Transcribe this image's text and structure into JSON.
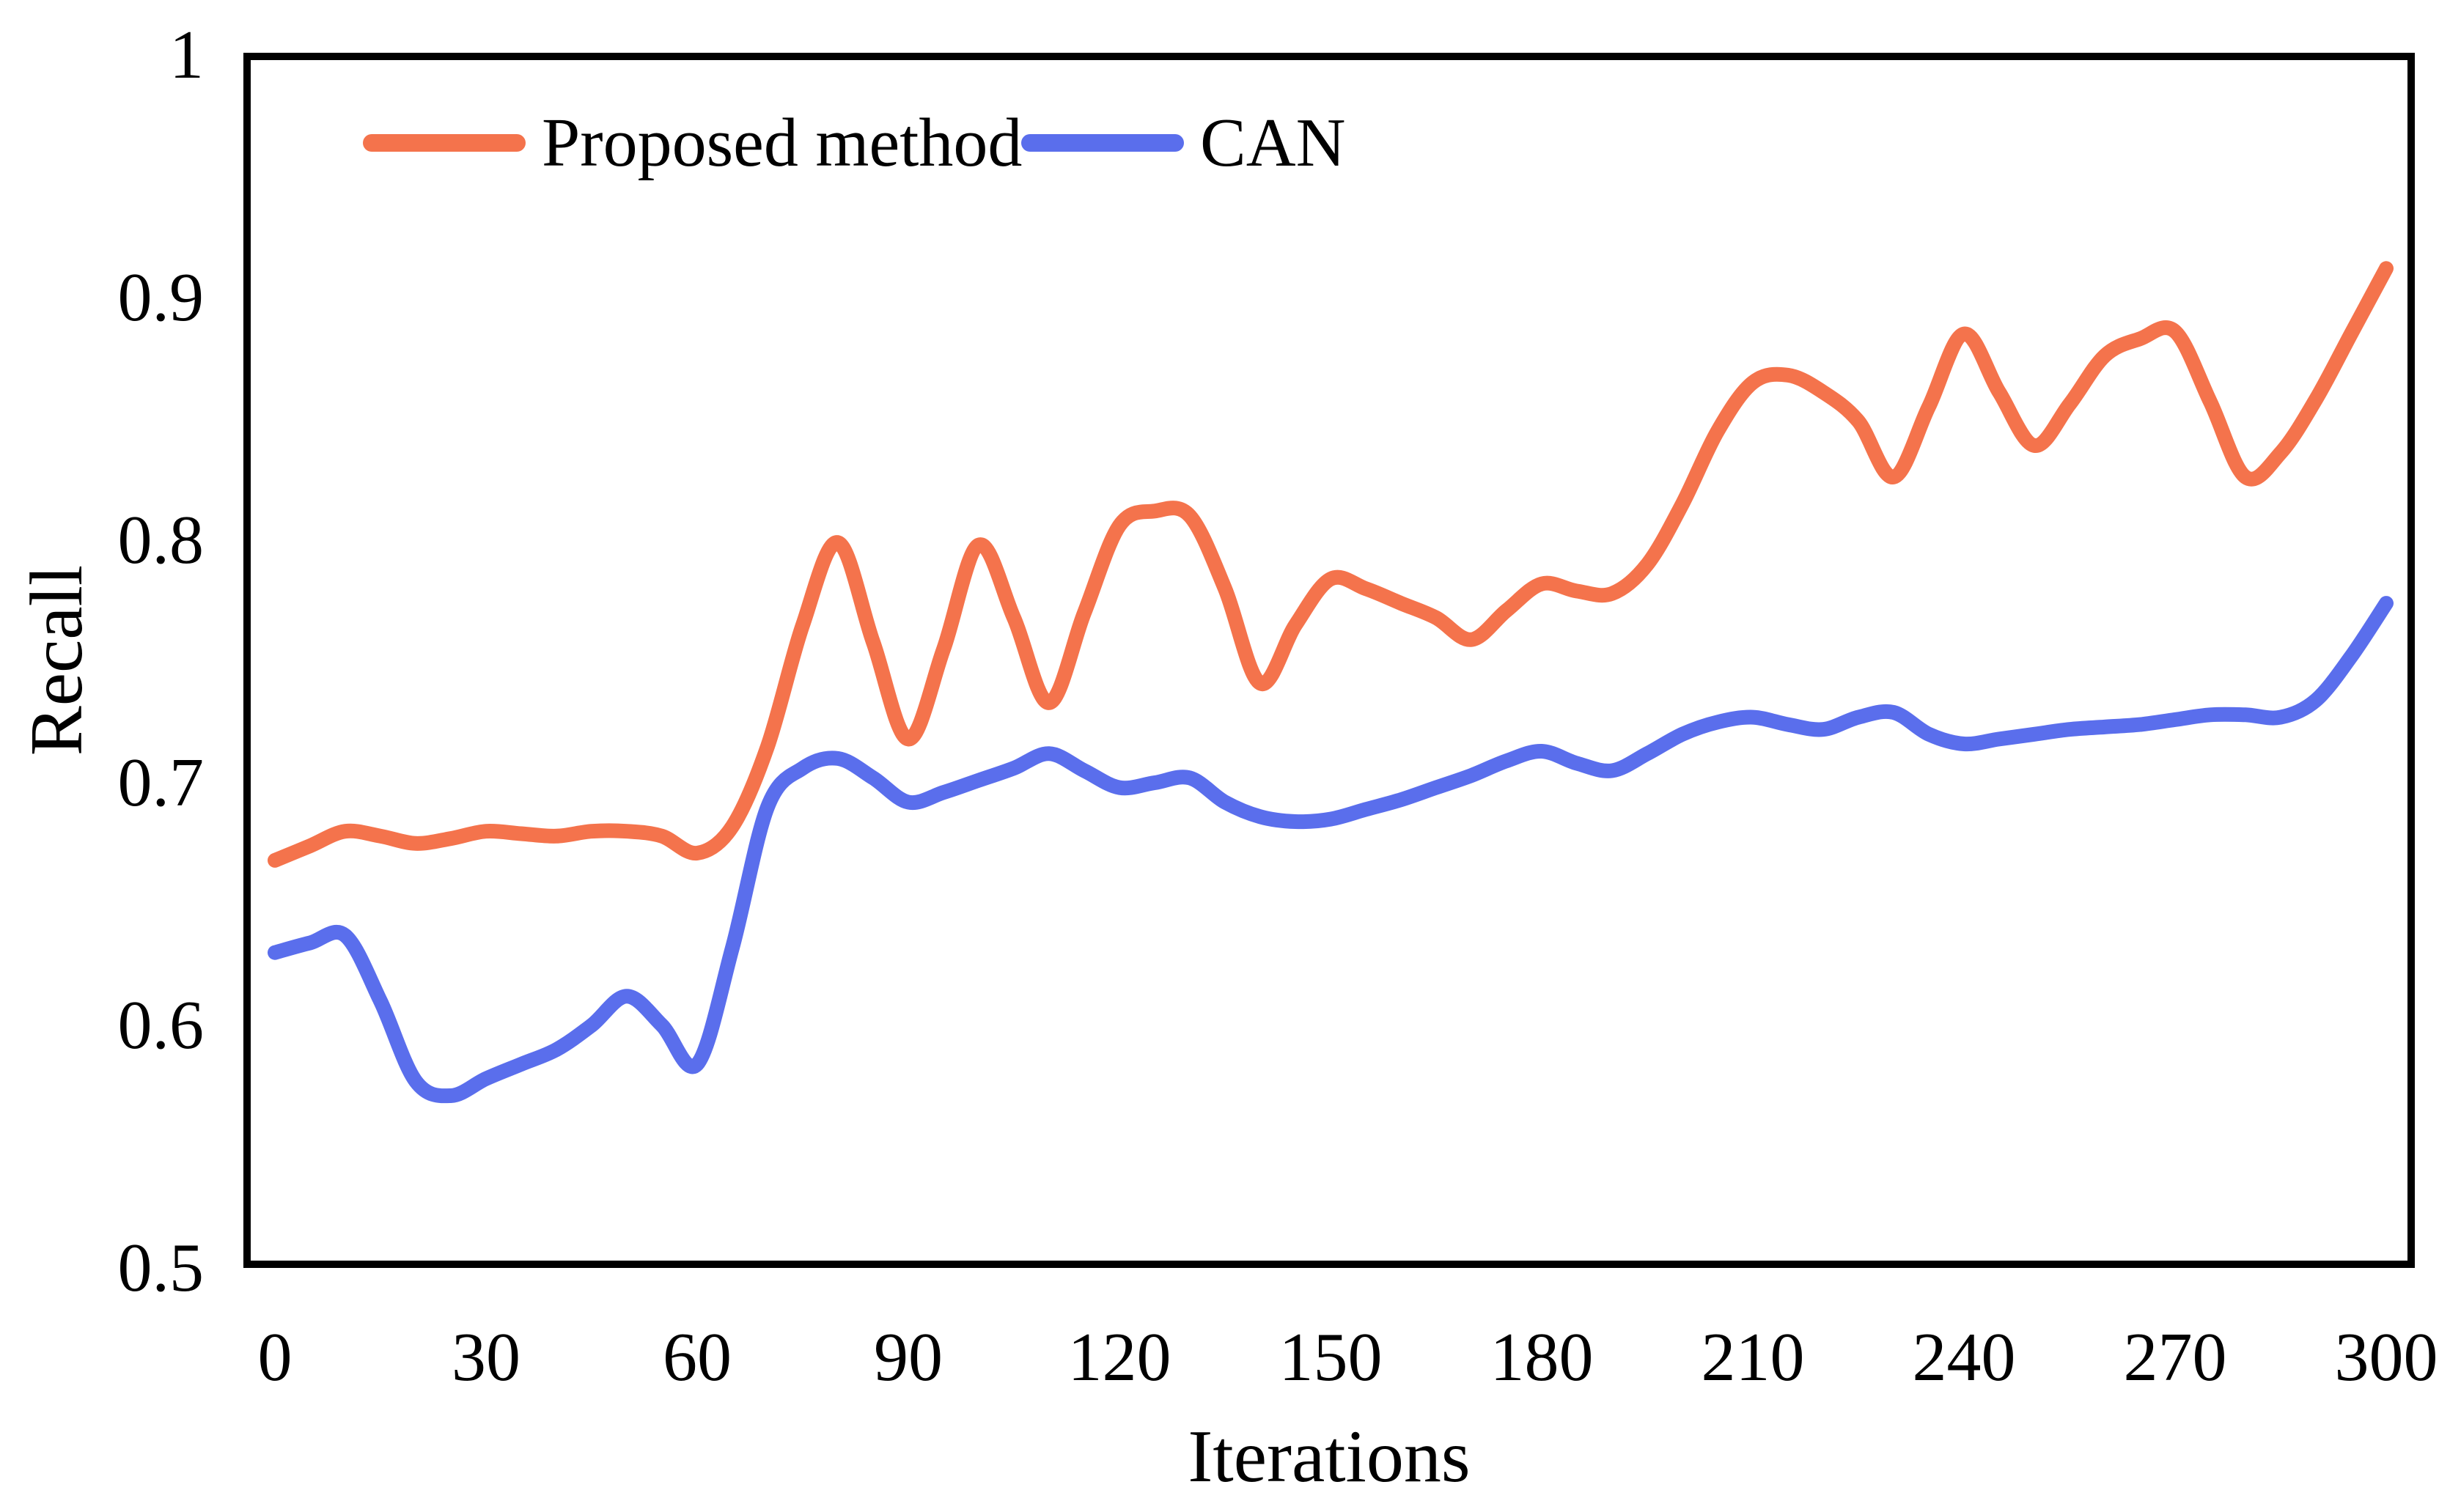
{
  "figure": {
    "background": "#ffffff",
    "border_color": "#000000"
  },
  "chart_data": {
    "type": "line",
    "title": "",
    "xlabel": "Iterations",
    "ylabel": "Recall",
    "xlim": [
      0,
      300
    ],
    "ylim": [
      0.5,
      1.0
    ],
    "grid": false,
    "legend_position": "top-left-inside",
    "x_ticks": {
      "values": [
        0,
        30,
        60,
        90,
        120,
        150,
        180,
        210,
        240,
        270,
        300
      ],
      "labels": [
        "0",
        "30",
        "60",
        "90",
        "120",
        "150",
        "180",
        "210",
        "240",
        "270",
        "300"
      ]
    },
    "y_ticks": {
      "values": [
        0.5,
        0.6,
        0.7,
        0.8,
        0.9,
        1.0
      ],
      "labels": [
        "0.5",
        "0.6",
        "0.7",
        "0.8",
        "0.9",
        "1"
      ]
    },
    "x": [
      0,
      5,
      10,
      15,
      20,
      25,
      30,
      35,
      40,
      45,
      50,
      55,
      60,
      65,
      70,
      75,
      80,
      85,
      90,
      95,
      100,
      105,
      110,
      115,
      120,
      125,
      130,
      135,
      140,
      145,
      150,
      155,
      160,
      165,
      170,
      175,
      180,
      185,
      190,
      195,
      200,
      205,
      210,
      215,
      220,
      225,
      230,
      235,
      240,
      245,
      250,
      255,
      260,
      265,
      270,
      275,
      280,
      285,
      290,
      295,
      300
    ],
    "series": [
      {
        "id": "proposed-method",
        "name": "Proposed method",
        "color": "#F4734C",
        "values": [
          0.668,
          0.674,
          0.68,
          0.678,
          0.675,
          0.677,
          0.68,
          0.679,
          0.678,
          0.68,
          0.68,
          0.678,
          0.671,
          0.682,
          0.715,
          0.765,
          0.799,
          0.758,
          0.718,
          0.755,
          0.798,
          0.768,
          0.733,
          0.77,
          0.806,
          0.812,
          0.81,
          0.78,
          0.741,
          0.765,
          0.784,
          0.78,
          0.774,
          0.768,
          0.759,
          0.771,
          0.782,
          0.779,
          0.778,
          0.79,
          0.815,
          0.845,
          0.865,
          0.868,
          0.861,
          0.849,
          0.826,
          0.855,
          0.885,
          0.861,
          0.839,
          0.856,
          0.876,
          0.883,
          0.886,
          0.857,
          0.826,
          0.836,
          0.858,
          0.885,
          0.912
        ]
      },
      {
        "id": "can",
        "name": "CAN",
        "color": "#5A6EEC",
        "values": [
          0.63,
          0.634,
          0.637,
          0.61,
          0.577,
          0.571,
          0.578,
          0.584,
          0.59,
          0.6,
          0.612,
          0.6,
          0.584,
          0.632,
          0.69,
          0.706,
          0.71,
          0.702,
          0.692,
          0.696,
          0.701,
          0.706,
          0.712,
          0.705,
          0.698,
          0.7,
          0.702,
          0.692,
          0.686,
          0.684,
          0.685,
          0.689,
          0.693,
          0.698,
          0.703,
          0.709,
          0.713,
          0.708,
          0.705,
          0.712,
          0.72,
          0.725,
          0.727,
          0.724,
          0.722,
          0.727,
          0.729,
          0.72,
          0.716,
          0.718,
          0.72,
          0.722,
          0.723,
          0.724,
          0.726,
          0.728,
          0.728,
          0.727,
          0.734,
          0.752,
          0.774
        ]
      }
    ]
  }
}
